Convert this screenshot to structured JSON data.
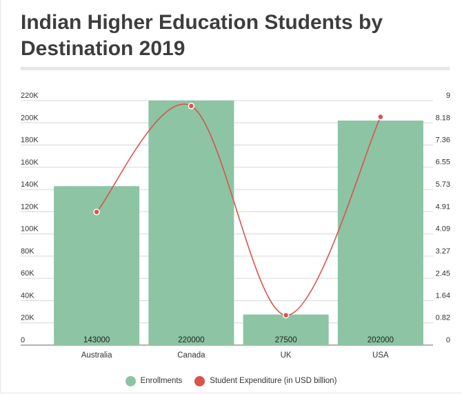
{
  "chart_data": {
    "type": "bar",
    "title": "Indian Higher Education Students by Destination 2019",
    "categories": [
      "Australia",
      "Canada",
      "UK",
      "USA"
    ],
    "series": [
      {
        "name": "Enrollments",
        "type": "bar",
        "axis": "left",
        "color": "#8cc4a4",
        "values": [
          143000,
          220000,
          27500,
          202000
        ],
        "value_labels": [
          "143000",
          "220000",
          "27500",
          "202000"
        ]
      },
      {
        "name": "Student Expenditure (in USD billion)",
        "type": "line",
        "axis": "right",
        "color": "#d9534f",
        "values": [
          4.9,
          8.8,
          1.1,
          8.4
        ]
      }
    ],
    "left_axis": {
      "ylim": [
        0,
        220000
      ],
      "ticks": [
        0,
        20000,
        40000,
        60000,
        80000,
        100000,
        120000,
        140000,
        160000,
        180000,
        200000,
        220000
      ],
      "tick_labels": [
        "0",
        "20K",
        "40K",
        "60K",
        "80K",
        "100K",
        "120K",
        "140K",
        "160K",
        "180K",
        "200K",
        "220K"
      ]
    },
    "right_axis": {
      "ylim": [
        0,
        9
      ],
      "ticks": [
        0,
        0.82,
        1.64,
        2.45,
        3.27,
        4.09,
        4.91,
        5.73,
        6.55,
        7.36,
        8.18,
        9
      ],
      "tick_labels": [
        "0",
        "0.82",
        "1.64",
        "2.45",
        "3.27",
        "4.09",
        "4.91",
        "5.73",
        "6.55",
        "7.36",
        "8.18",
        "9"
      ]
    },
    "grid": true,
    "legend_position": "bottom-center"
  }
}
